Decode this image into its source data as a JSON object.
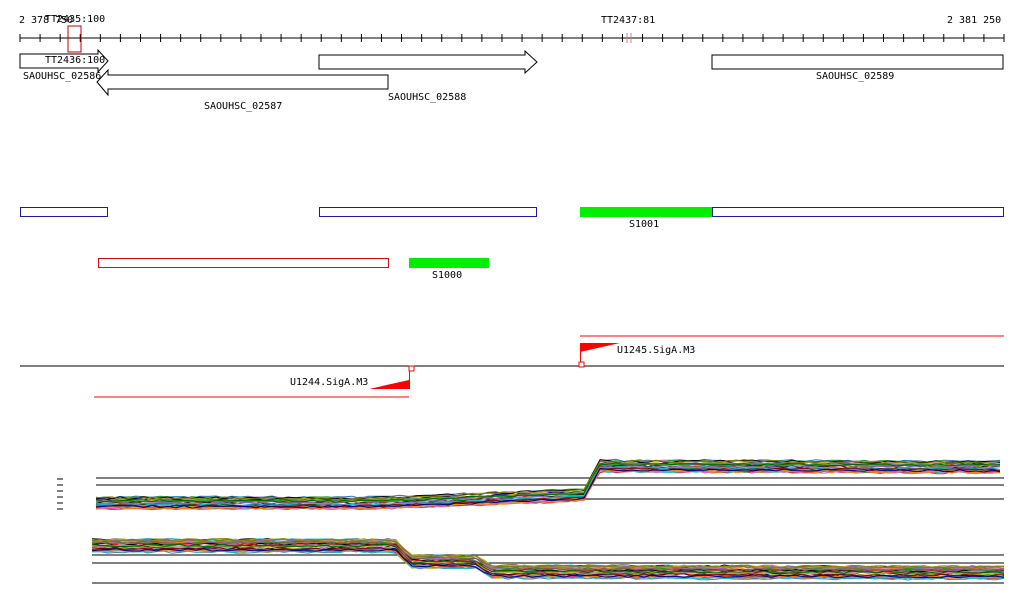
{
  "ruler": {
    "start_label": "2 378 750",
    "end_label": "2 381 250"
  },
  "terminators": {
    "tt2435": "TT2435:100",
    "tt2436": "TT2436:100",
    "tt2437": "TT2437:81"
  },
  "genes": {
    "g2586": "SAOUHSC_02586",
    "g2587": "SAOUHSC_02587",
    "g2588": "SAOUHSC_02588",
    "g2589": "SAOUHSC_02589"
  },
  "segments": {
    "s1001": "S1001",
    "s1000": "S1000"
  },
  "promoters": {
    "u1245": "U1245.SigA.M3",
    "u1244": "U1244.SigA.M3"
  },
  "colors": {
    "gene_outline": "#000000",
    "forward_segment": "#1a1aa0",
    "reverse_segment": "#d01010",
    "highlight_segment": "#00ee00",
    "promoter": "#ff0000"
  }
}
